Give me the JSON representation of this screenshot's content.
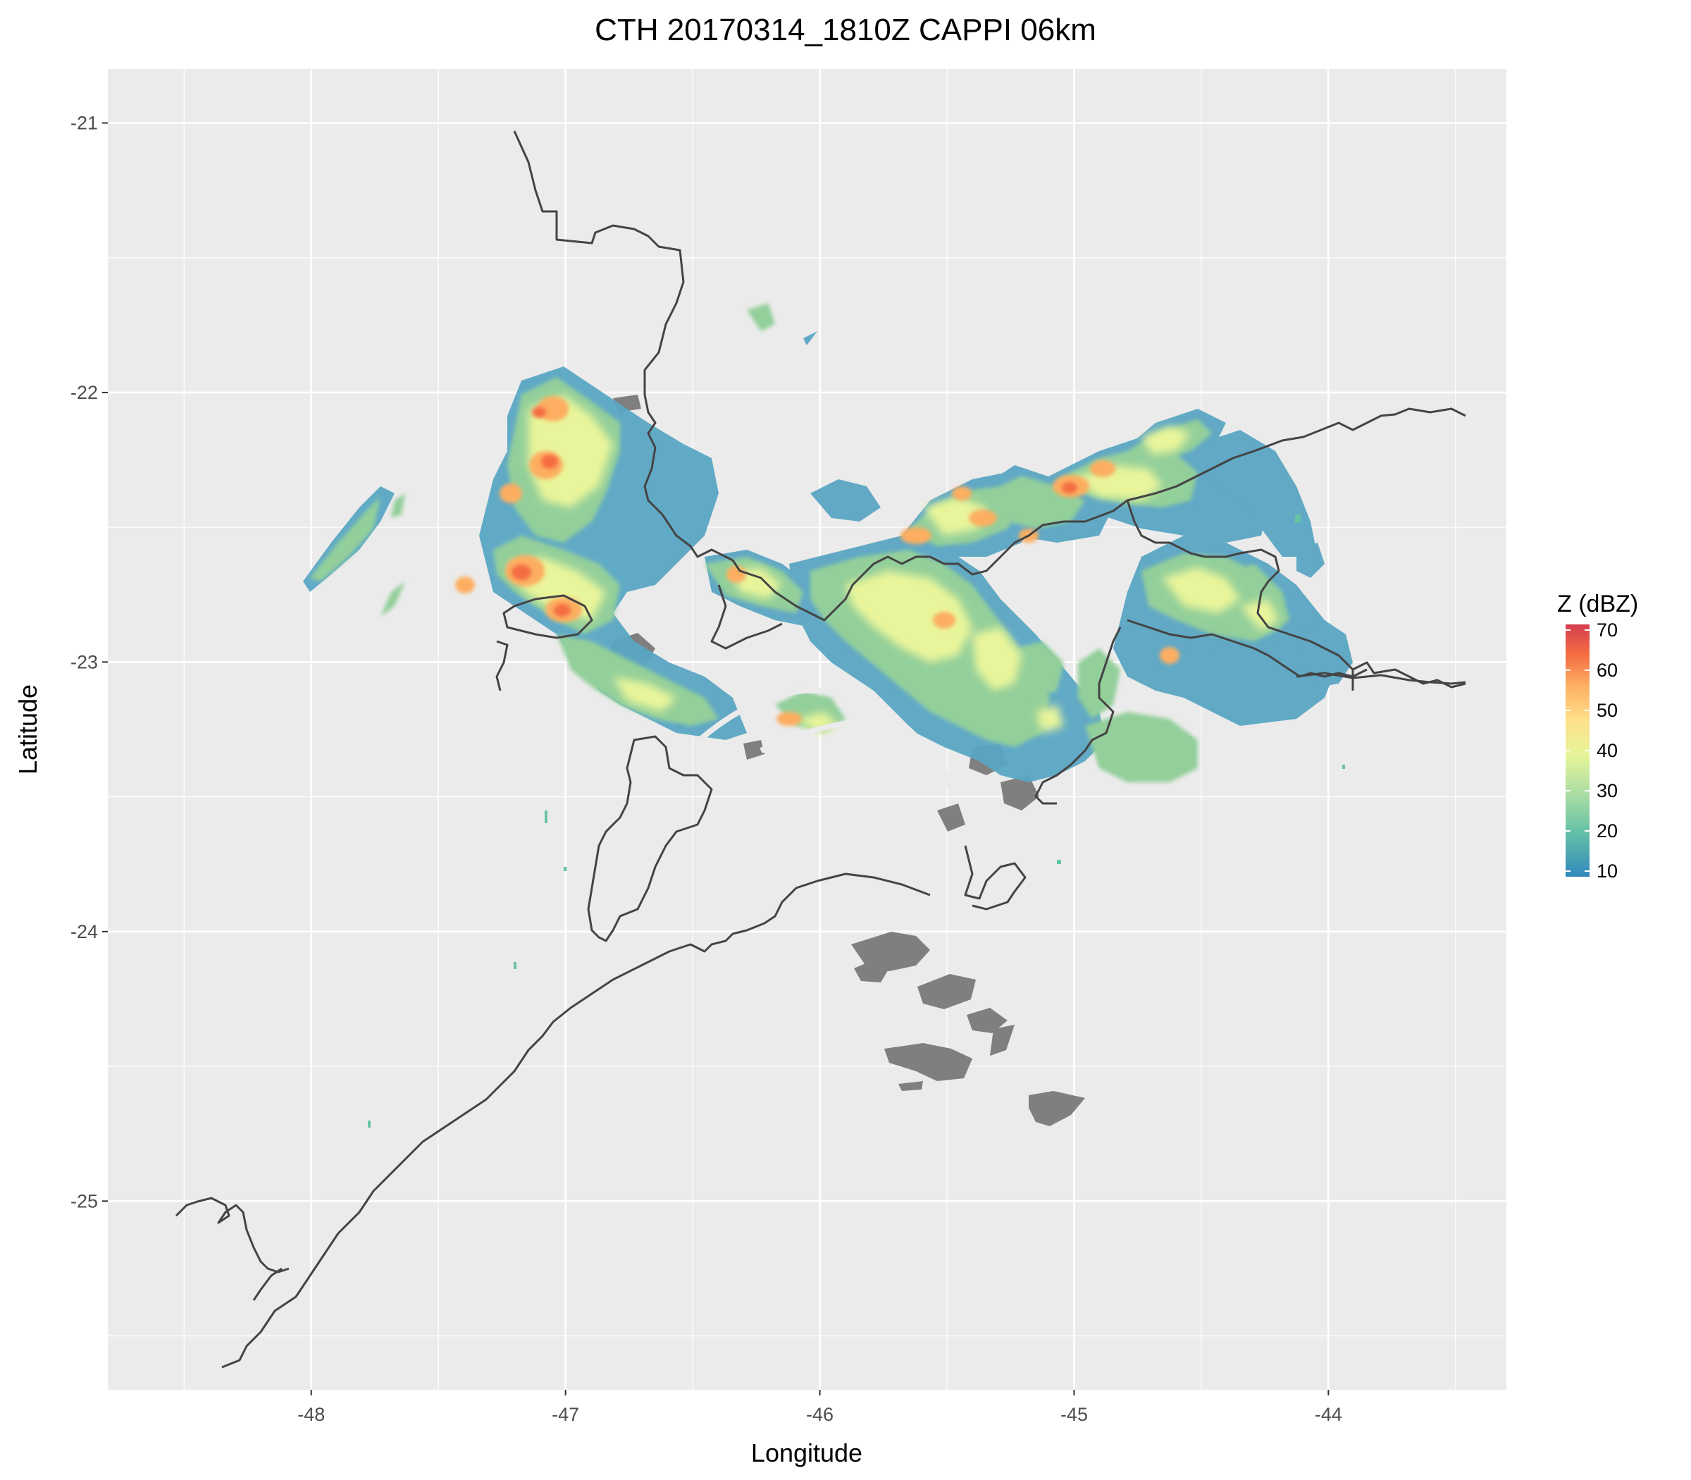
{
  "title": "CTH 20170314_1810Z  CAPPI 06km",
  "x_axis": {
    "label": "Longitude",
    "ticks": [
      -48,
      -47,
      -46,
      -45,
      -44
    ],
    "range": [
      -48.8,
      -43.3
    ]
  },
  "y_axis": {
    "label": "Latitude",
    "ticks": [
      -21,
      -22,
      -23,
      -24,
      -25
    ],
    "range": [
      -25.7,
      -20.8
    ]
  },
  "legend": {
    "title": "Z (dBZ)",
    "ticks": [
      10,
      20,
      30,
      40,
      50,
      60,
      70
    ],
    "range": [
      10,
      70
    ],
    "placement": "right"
  },
  "colors": {
    "panel": "#ebebeb",
    "grid": "#ffffff",
    "coast": "#444444",
    "clutter": "#7f7f7f",
    "scale": [
      "#3288bd",
      "#66c2a5",
      "#abdda4",
      "#e6f598",
      "#fee08b",
      "#fdae61",
      "#f46d43",
      "#d53e4f"
    ]
  }
}
